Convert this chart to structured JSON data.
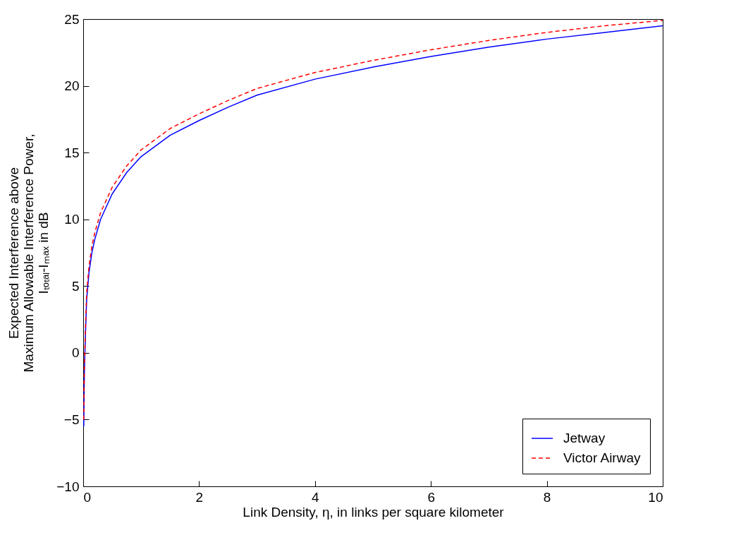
{
  "chart_data": {
    "type": "line",
    "xlabel": "Link Density, η, in links per square kilometer",
    "ylabel": "Expected Interference above\nMaximum Allowable Interference Power,\nIₜₒₜₐₗ-Iₘₐₓ in dB",
    "xlim": [
      0,
      10
    ],
    "ylim": [
      -10,
      25
    ],
    "xticks": [
      0,
      2,
      4,
      6,
      8,
      10
    ],
    "yticks": [
      -10,
      -5,
      0,
      5,
      10,
      15,
      20,
      25
    ],
    "grid": false,
    "legend": "bottom right",
    "series": [
      {
        "name": "Jetway",
        "color": "#0000ff",
        "line_style": "solid",
        "x": [
          0.01,
          0.02,
          0.04,
          0.06,
          0.1,
          0.15,
          0.2,
          0.3,
          0.5,
          0.75,
          1,
          1.5,
          2,
          2.5,
          3,
          4,
          5,
          6,
          7,
          8,
          9,
          10
        ],
        "values": [
          -5.5,
          -1.5,
          1.5,
          4,
          6,
          7.5,
          8.5,
          10,
          11.9,
          13.5,
          14.7,
          16.3,
          17.4,
          18.4,
          19.3,
          20.5,
          21.4,
          22.2,
          22.9,
          23.5,
          24,
          24.5
        ]
      },
      {
        "name": "Victor Airway",
        "color": "#ff0000",
        "line_style": "dashed",
        "x": [
          0.01,
          0.02,
          0.04,
          0.06,
          0.1,
          0.15,
          0.2,
          0.3,
          0.5,
          0.75,
          1,
          1.5,
          2,
          2.5,
          3,
          4,
          5,
          6,
          7,
          8,
          9,
          10
        ],
        "values": [
          -5,
          -1,
          2,
          4.5,
          6.5,
          8,
          9,
          10.5,
          12.4,
          14,
          15.2,
          16.8,
          17.9,
          18.9,
          19.8,
          21,
          21.9,
          22.7,
          23.4,
          24,
          24.5,
          24.9
        ]
      }
    ]
  }
}
